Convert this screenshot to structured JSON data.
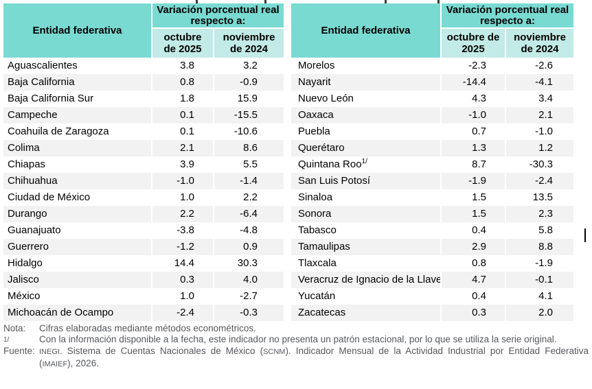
{
  "colors": {
    "header_teal": "#79dad2",
    "subheader_teal": "#c2eae6",
    "row_alt": "#f2f2f2",
    "footnote_gray": "#55575b"
  },
  "table_header": {
    "entity": "Entidad federativa",
    "variation": "Variación porcentual real respecto a:",
    "col_oct": "octubre de 2025",
    "col_nov": "noviembre de 2024"
  },
  "left_table": {
    "rows": [
      {
        "name": "Aguascalientes",
        "oct": "3.8",
        "nov": "3.2"
      },
      {
        "name": "Baja California",
        "oct": "0.8",
        "nov": "-0.9"
      },
      {
        "name": "Baja California Sur",
        "oct": "1.8",
        "nov": "15.9"
      },
      {
        "name": "Campeche",
        "oct": "0.1",
        "nov": "-15.5"
      },
      {
        "name": "Coahuila de Zaragoza",
        "oct": "0.1",
        "nov": "-10.6"
      },
      {
        "name": "Colima",
        "oct": "2.1",
        "nov": "8.6"
      },
      {
        "name": "Chiapas",
        "oct": "3.9",
        "nov": "5.5"
      },
      {
        "name": "Chihuahua",
        "oct": "-1.0",
        "nov": "-1.4"
      },
      {
        "name": "Ciudad de México",
        "oct": "1.0",
        "nov": "2.2"
      },
      {
        "name": "Durango",
        "oct": "2.2",
        "nov": "-6.4"
      },
      {
        "name": "Guanajuato",
        "oct": "-3.8",
        "nov": "-4.8"
      },
      {
        "name": "Guerrero",
        "oct": "-1.2",
        "nov": "0.9"
      },
      {
        "name": "Hidalgo",
        "oct": "14.4",
        "nov": "30.3"
      },
      {
        "name": "Jalisco",
        "oct": "0.3",
        "nov": "4.0"
      },
      {
        "name": "México",
        "oct": "1.0",
        "nov": "-2.7"
      },
      {
        "name": "Michoacán de Ocampo",
        "oct": "-2.4",
        "nov": "-0.3"
      }
    ]
  },
  "right_table": {
    "rows": [
      {
        "name": "Morelos",
        "oct": "-2.3",
        "nov": "-2.6"
      },
      {
        "name": "Nayarit",
        "oct": "-14.4",
        "nov": "-4.1"
      },
      {
        "name": "Nuevo León",
        "oct": "4.3",
        "nov": "3.4"
      },
      {
        "name": "Oaxaca",
        "oct": "-1.0",
        "nov": "2.1"
      },
      {
        "name": "Puebla",
        "oct": "0.7",
        "nov": "-1.0"
      },
      {
        "name": "Querétaro",
        "oct": "1.3",
        "nov": "1.2"
      },
      {
        "name": "Quintana Roo",
        "sup": "1/",
        "oct": "8.7",
        "nov": "-30.3"
      },
      {
        "name": "San Luis Potosí",
        "oct": "-1.9",
        "nov": "-2.4"
      },
      {
        "name": "Sinaloa",
        "oct": "1.5",
        "nov": "13.5"
      },
      {
        "name": "Sonora",
        "oct": "1.5",
        "nov": "2.3"
      },
      {
        "name": "Tabasco",
        "oct": "0.4",
        "nov": "5.8"
      },
      {
        "name": "Tamaulipas",
        "oct": "2.9",
        "nov": "8.8"
      },
      {
        "name": "Tlaxcala",
        "oct": "0.8",
        "nov": "-1.9"
      },
      {
        "name": "Veracruz de Ignacio de la Llave",
        "oct": "4.7",
        "nov": "-0.1"
      },
      {
        "name": "Yucatán",
        "oct": "0.4",
        "nov": "4.1"
      },
      {
        "name": "Zacatecas",
        "oct": "0.3",
        "nov": "2.0"
      }
    ]
  },
  "footnotes": {
    "nota_label": "Nota:",
    "nota_text": "Cifras elaboradas mediante métodos econométricos.",
    "sup_label": "1/",
    "sup_text": "Con la información disponible a la fecha, este indicador no presenta un patrón estacional, por lo que se utiliza la serie original.",
    "fuente_label": "Fuente:",
    "fuente_segments": [
      {
        "t": "INEGI",
        "sc": true
      },
      {
        "t": ". Sistema de Cuentas Nacionales de México ("
      },
      {
        "t": "SCNM",
        "sc": true
      },
      {
        "t": "). Indicador Mensual de la Actividad Industrial por Entidad Federativa ("
      },
      {
        "t": "IMAIEF",
        "sc": true
      },
      {
        "t": "), 2026."
      }
    ]
  }
}
